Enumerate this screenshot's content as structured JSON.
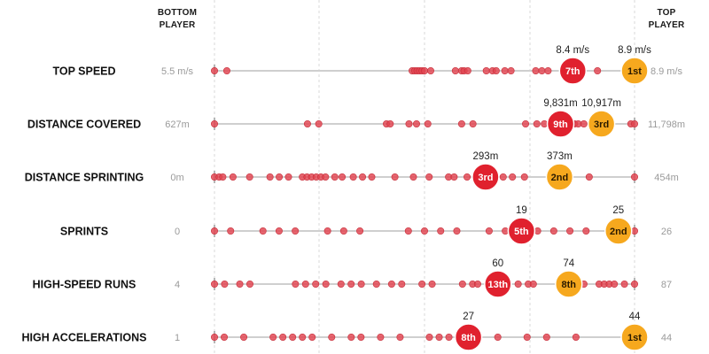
{
  "headers": {
    "bottom_line1": "BOTTOM",
    "bottom_line2": "PLAYER",
    "top_line1": "TOP",
    "top_line2": "PLAYER"
  },
  "colors": {
    "dot": "#e2434f",
    "dot_stroke": "#c62f3b",
    "highlight_red": "#e0212e",
    "highlight_orange": "#f6a81e",
    "track": "#cfcfcf",
    "guide": "#d8d8d8"
  },
  "chart_data": {
    "type": "scatter",
    "metrics": [
      {
        "name": "TOP SPEED",
        "min_label": "5.5 m/s",
        "max_label": "8.9 m/s",
        "min": 5.5,
        "max": 8.9,
        "values": [
          5.5,
          5.6,
          7.1,
          7.12,
          7.14,
          7.16,
          7.18,
          7.2,
          7.25,
          7.45,
          7.5,
          7.52,
          7.55,
          7.7,
          7.75,
          7.78,
          7.85,
          7.9,
          8.1,
          8.15,
          8.2,
          8.6
        ],
        "highlights": [
          {
            "rank": "7th",
            "value": 8.4,
            "label": "8.4 m/s",
            "color": "red"
          },
          {
            "rank": "1st",
            "value": 8.9,
            "label": "8.9 m/s",
            "color": "orange"
          }
        ]
      },
      {
        "name": "DISTANCE COVERED",
        "min_label": "627m",
        "max_label": "11,798m",
        "min": 627,
        "max": 11798,
        "values": [
          627,
          3100,
          3400,
          5200,
          5300,
          5800,
          6000,
          6300,
          7200,
          7500,
          8900,
          9200,
          9400,
          9600,
          10150,
          10200,
          10300,
          10450,
          11700,
          11798
        ],
        "highlights": [
          {
            "rank": "9th",
            "value": 9831,
            "label": "9,831m",
            "color": "red"
          },
          {
            "rank": "3rd",
            "value": 10917,
            "label": "10,917m",
            "color": "orange"
          }
        ]
      },
      {
        "name": "DISTANCE SPRINTING",
        "min_label": "0m",
        "max_label": "454m",
        "min": 0,
        "max": 454,
        "values": [
          0,
          5,
          9,
          20,
          38,
          60,
          70,
          80,
          95,
          100,
          105,
          110,
          115,
          120,
          130,
          138,
          150,
          160,
          170,
          195,
          215,
          232,
          253,
          259,
          273,
          312,
          322,
          335,
          405,
          454
        ],
        "highlights": [
          {
            "rank": "3rd",
            "value": 293,
            "label": "293m",
            "color": "red"
          },
          {
            "rank": "2nd",
            "value": 373,
            "label": "373m",
            "color": "orange"
          }
        ]
      },
      {
        "name": "SPRINTS",
        "min_label": "0",
        "max_label": "26",
        "min": 0,
        "max": 26,
        "values": [
          0,
          1,
          3,
          4,
          5,
          7,
          8,
          9,
          12,
          13,
          14,
          15,
          17,
          18,
          20,
          21,
          22,
          23,
          26
        ],
        "highlights": [
          {
            "rank": "5th",
            "value": 19,
            "label": "19",
            "color": "red"
          },
          {
            "rank": "2nd",
            "value": 25,
            "label": "25",
            "color": "orange"
          }
        ]
      },
      {
        "name": "HIGH-SPEED RUNS",
        "min_label": "4",
        "max_label": "87",
        "min": 4,
        "max": 87,
        "values": [
          4,
          6,
          9,
          11,
          20,
          22,
          24,
          26,
          29,
          31,
          33,
          36,
          39,
          41,
          45,
          47,
          53,
          55,
          56,
          58,
          64,
          66,
          67,
          76,
          77,
          80,
          81,
          82,
          83,
          85,
          87
        ],
        "highlights": [
          {
            "rank": "13th",
            "value": 60,
            "label": "60",
            "color": "red"
          },
          {
            "rank": "8th",
            "value": 74,
            "label": "74",
            "color": "orange"
          }
        ]
      },
      {
        "name": "HIGH ACCELERATIONS",
        "min_label": "1",
        "max_label": "44",
        "min": 1,
        "max": 44,
        "values": [
          1,
          2,
          4,
          7,
          8,
          9,
          10,
          11,
          13,
          15,
          16,
          18,
          20,
          23,
          24,
          25,
          30,
          33,
          35,
          38
        ],
        "highlights": [
          {
            "rank": "8th",
            "value": 27,
            "label": "27",
            "color": "red"
          },
          {
            "rank": "1st",
            "value": 44,
            "label": "44",
            "color": "orange"
          }
        ]
      }
    ]
  }
}
